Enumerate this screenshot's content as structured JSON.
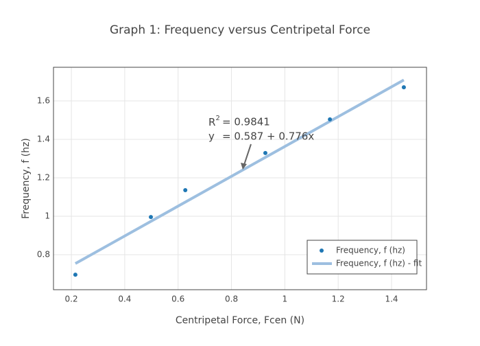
{
  "chart_data": {
    "type": "scatter",
    "title": "Graph 1: Frequency versus Centripetal Force",
    "x_label": "Centripetal Force, Fcen (N)",
    "y_label": "Frequency, f (hz)",
    "xlim": [
      0.133,
      1.531
    ],
    "ylim": [
      0.618,
      1.775
    ],
    "xticks": [
      0.2,
      0.4,
      0.6,
      0.8,
      1,
      1.2,
      1.4
    ],
    "yticks": [
      0.8,
      1,
      1.2,
      1.4,
      1.6
    ],
    "grid": true,
    "legend": "bottom-right",
    "series": [
      {
        "name": "Frequency, f (hz)",
        "type": "scatter",
        "color": "#1f77b4",
        "x": [
          0.215,
          0.498,
          0.627,
          0.927,
          1.169,
          1.446
        ],
        "values": [
          0.696,
          0.996,
          1.136,
          1.329,
          1.504,
          1.671
        ]
      },
      {
        "name": "Frequency, f (hz) - fit",
        "type": "line",
        "color": "#9dbfe0",
        "x": [
          0.215,
          1.446
        ],
        "values": [
          0.754,
          1.709
        ]
      }
    ],
    "annotation": {
      "r_label": "R",
      "r_exponent": "2",
      "r_value": "= 0.9841",
      "y_label": "y",
      "y_value": "= 0.587 + 0.776x"
    }
  }
}
